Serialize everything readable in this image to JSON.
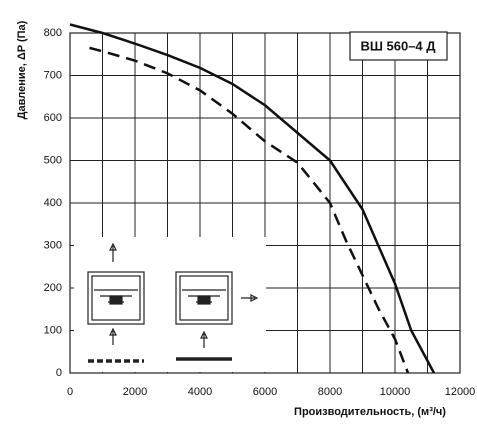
{
  "chart_data": {
    "type": "line",
    "title": "ВШ 560–4 Д",
    "x_label": "Производительность, (м³/ч)",
    "y_label": "Давление, ΔP (Па)",
    "xlim": [
      0,
      12000
    ],
    "ylim": [
      0,
      800
    ],
    "xticks": [
      0,
      2000,
      4000,
      6000,
      8000,
      10000,
      12000
    ],
    "x_minor_ticks": [
      1000,
      3000,
      5000,
      7000,
      9000,
      11000
    ],
    "yticks": [
      0,
      100,
      200,
      300,
      400,
      500,
      600,
      700,
      800
    ],
    "grid": true,
    "series": [
      {
        "color": "#111111",
        "dash": false,
        "x": [
          0,
          1000,
          2000,
          3000,
          4000,
          5000,
          6000,
          7000,
          8000,
          9000,
          10000,
          10500,
          11200
        ],
        "values": [
          820,
          800,
          775,
          748,
          718,
          680,
          630,
          565,
          500,
          385,
          210,
          100,
          0
        ]
      },
      {
        "color": "#111111",
        "dash": true,
        "x": [
          600,
          1000,
          2000,
          3000,
          4000,
          5000,
          6000,
          7000,
          8000,
          8500,
          9000,
          9500,
          10000,
          10400
        ],
        "values": [
          765,
          757,
          735,
          705,
          665,
          610,
          545,
          495,
          400,
          310,
          230,
          150,
          80,
          0
        ]
      }
    ]
  }
}
